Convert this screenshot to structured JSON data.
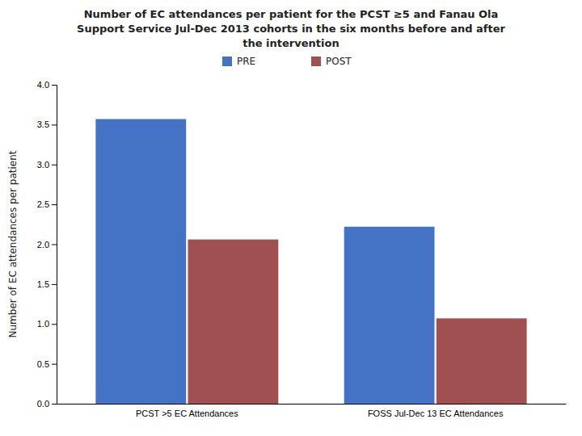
{
  "chart_data": {
    "type": "bar",
    "title": "Number of EC attendances per patient for the PCST ≥5 and Fanau Ola\nSupport Service Jul-Dec 2013 cohorts in the six months before and after\nthe intervention",
    "categories": [
      "PCST >5 EC Attendances",
      "FOSS Jul-Dec 13 EC Attendances"
    ],
    "series": [
      {
        "name": "PRE",
        "color": "#4472c4",
        "values": [
          3.57,
          2.22
        ]
      },
      {
        "name": "POST",
        "color": "#a05050",
        "values": [
          2.06,
          1.07
        ]
      }
    ],
    "ylabel": "Number of EC attendances per patient",
    "ylim": [
      0,
      4.0
    ],
    "yticks": [
      {
        "value": 0.0,
        "label": "0.0"
      },
      0.5,
      {
        "value": 1.0,
        "label": "1.0"
      },
      1.5,
      {
        "value": 2.0,
        "label": "2.0"
      },
      2.5,
      {
        "value": 3.0,
        "label": "3.0"
      },
      3.5,
      {
        "value": 4.0,
        "label": "4.0"
      }
    ],
    "grid": false,
    "legend": "top"
  }
}
